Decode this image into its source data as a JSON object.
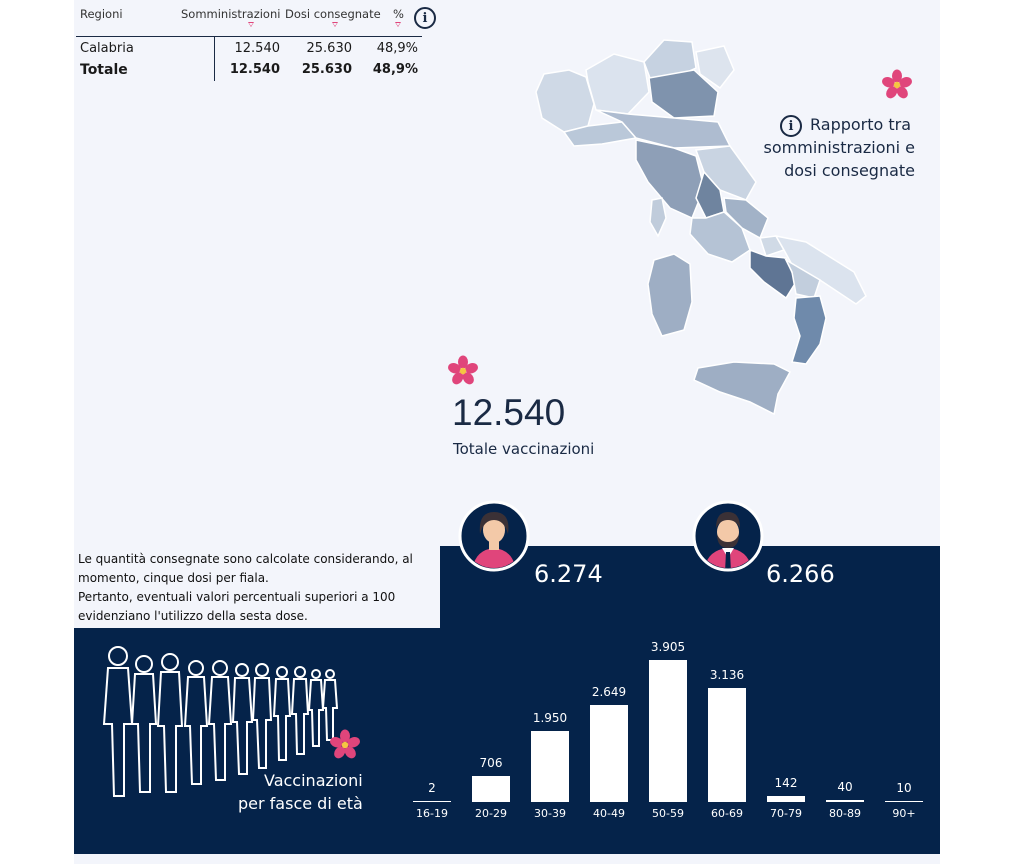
{
  "table": {
    "headers": [
      "Regioni",
      "Somministrazioni",
      "Dosi consegnate",
      "%"
    ],
    "rows": [
      {
        "region": "Calabria",
        "somministrazioni": "12.540",
        "dosi": "25.630",
        "pct": "48,9%"
      },
      {
        "region": "Totale",
        "somministrazioni": "12.540",
        "dosi": "25.630",
        "pct": "48,9%"
      }
    ]
  },
  "info_icon_glyph": "i",
  "ratio_label": {
    "line1": "Rapporto tra",
    "line2": "somministrazioni e",
    "line3": "dosi consegnate"
  },
  "total": {
    "value": "12.540",
    "label": "Totale vaccinazioni"
  },
  "note": {
    "line1": "Le quantità consegnate sono calcolate considerando, al",
    "line2": "momento, cinque dosi per fiala.",
    "line3": "Pertanto, eventuali valori percentuali superiori a 100",
    "line4": "evidenziano l'utilizzo della sesta dose."
  },
  "gender": {
    "female": "6.274",
    "male": "6.266"
  },
  "age_title": {
    "line1": "Vaccinazioni",
    "line2": "per fasce di età"
  },
  "colors": {
    "navy": "#05234a",
    "accent_pink": "#e0457b",
    "map_dark": "#7f93ad",
    "map_light": "#dbe3ee"
  },
  "chart_data": {
    "type": "bar",
    "categories": [
      "16-19",
      "20-29",
      "30-39",
      "40-49",
      "50-59",
      "60-69",
      "70-79",
      "80-89",
      "90+"
    ],
    "values": [
      2,
      706,
      1950,
      2649,
      3905,
      3136,
      142,
      40,
      10
    ],
    "value_labels": [
      "2",
      "706",
      "1.950",
      "2.649",
      "3.905",
      "3.136",
      "142",
      "40",
      "10"
    ],
    "ylim": [
      0,
      3905
    ]
  }
}
